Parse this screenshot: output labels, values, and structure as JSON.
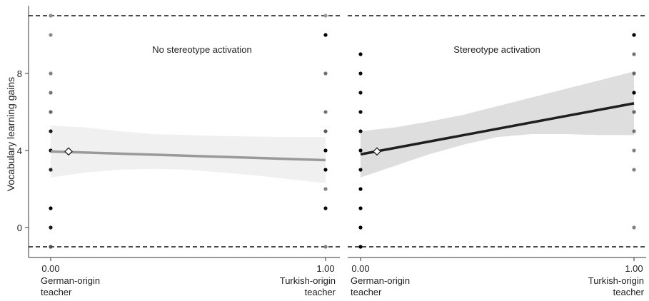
{
  "chart_data": {
    "type": "scatter",
    "ylabel": "Vocabulary learning gains",
    "y_ticks": [
      0,
      4,
      8
    ],
    "ylim": [
      -1,
      11
    ],
    "reference_lines_y": [
      -1,
      11
    ],
    "x_ticks": [
      {
        "value": 0,
        "label": "0.00"
      },
      {
        "value": 1,
        "label": "1.00"
      }
    ],
    "x_category_labels": [
      {
        "x": 0,
        "lines": [
          "German-origin",
          "teacher"
        ]
      },
      {
        "x": 1,
        "lines": [
          "Turkish-origin",
          "teacher"
        ]
      }
    ],
    "panels": [
      {
        "title": "No stereotype activation",
        "line": {
          "x": [
            0,
            1
          ],
          "y": [
            3.95,
            3.5
          ],
          "color": "#999999"
        },
        "band": {
          "x": [
            0,
            0.125,
            0.25,
            0.375,
            0.5,
            0.625,
            0.75,
            0.875,
            1
          ],
          "upper": [
            5.3,
            5.2,
            5.0,
            4.85,
            4.8,
            4.75,
            4.72,
            4.7,
            4.7
          ],
          "lower": [
            2.6,
            2.85,
            3.0,
            3.05,
            3.0,
            2.85,
            2.7,
            2.5,
            2.3
          ],
          "color": "#f0f0f0"
        },
        "mean_marker": {
          "x": 0.065,
          "y": 3.95
        },
        "points_left": [
          {
            "y": 11,
            "shade": 0.55
          },
          {
            "y": 10,
            "shade": 0.55
          },
          {
            "y": 8,
            "shade": 0.5
          },
          {
            "y": 7,
            "shade": 0.45
          },
          {
            "y": 6,
            "shade": 0.4
          },
          {
            "y": 5,
            "shade": 0.1
          },
          {
            "y": 4,
            "shade": 0.05
          },
          {
            "y": 3,
            "shade": 0.15
          },
          {
            "y": 1,
            "shade": 0.0
          },
          {
            "y": 0,
            "shade": 0.1
          },
          {
            "y": -1,
            "shade": 0.3
          }
        ],
        "points_right": [
          {
            "y": 11,
            "shade": 0.6
          },
          {
            "y": 10,
            "shade": 0.0
          },
          {
            "y": 8,
            "shade": 0.45
          },
          {
            "y": 6,
            "shade": 0.45
          },
          {
            "y": 5,
            "shade": 0.35
          },
          {
            "y": 4,
            "shade": 0.0
          },
          {
            "y": 3,
            "shade": 0.0
          },
          {
            "y": 2,
            "shade": 0.5
          },
          {
            "y": 1,
            "shade": 0.05
          },
          {
            "y": -1,
            "shade": 0.5
          }
        ]
      },
      {
        "title": "Stereotype activation",
        "line": {
          "x": [
            0,
            1
          ],
          "y": [
            3.8,
            6.45
          ],
          "color": "#1f1f1f"
        },
        "band": {
          "x": [
            0,
            0.125,
            0.25,
            0.375,
            0.5,
            0.625,
            0.75,
            0.875,
            1
          ],
          "upper": [
            5.0,
            5.2,
            5.5,
            5.85,
            6.3,
            6.75,
            7.2,
            7.65,
            8.1
          ],
          "lower": [
            2.6,
            3.2,
            3.8,
            4.3,
            4.7,
            4.85,
            4.85,
            4.8,
            4.8
          ],
          "color": "#dedede"
        },
        "mean_marker": {
          "x": 0.06,
          "y": 3.95
        },
        "points_left": [
          {
            "y": 9,
            "shade": 0.0
          },
          {
            "y": 8,
            "shade": 0.05
          },
          {
            "y": 7,
            "shade": 0.05
          },
          {
            "y": 6,
            "shade": 0.05
          },
          {
            "y": 5,
            "shade": 0.05
          },
          {
            "y": 4,
            "shade": 0.0
          },
          {
            "y": 3,
            "shade": 0.05
          },
          {
            "y": 2,
            "shade": 0.0
          },
          {
            "y": 1,
            "shade": 0.0
          },
          {
            "y": 0,
            "shade": 0.0
          },
          {
            "y": -1,
            "shade": 0.0
          }
        ],
        "points_right": [
          {
            "y": 10,
            "shade": 0.0
          },
          {
            "y": 9,
            "shade": 0.45
          },
          {
            "y": 8,
            "shade": 0.4
          },
          {
            "y": 7,
            "shade": 0.0
          },
          {
            "y": 6,
            "shade": 0.4
          },
          {
            "y": 5,
            "shade": 0.45
          },
          {
            "y": 4,
            "shade": 0.5
          },
          {
            "y": 3,
            "shade": 0.5
          },
          {
            "y": 0,
            "shade": 0.5
          }
        ]
      }
    ]
  }
}
